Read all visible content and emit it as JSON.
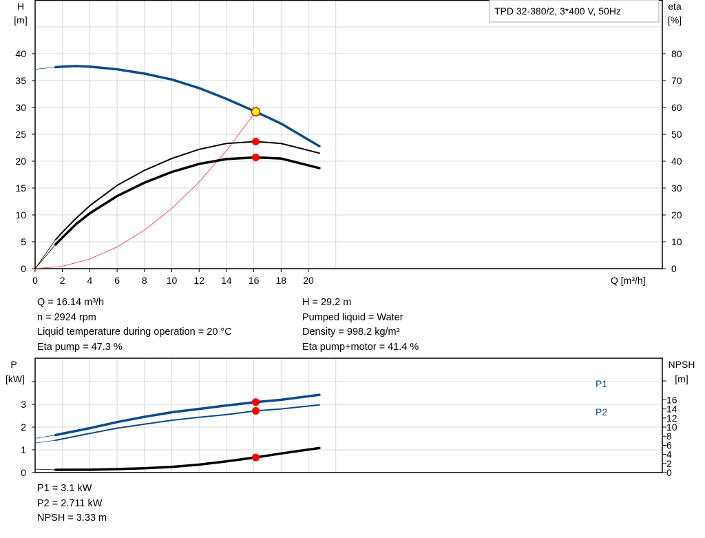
{
  "chart_data": [
    {
      "type": "line",
      "title": "TPD 32-380/2, 3*400 V, 50Hz",
      "xlabel": "Q [m³/h]",
      "ylabel": "H\n[m]",
      "ylabel_lines": [
        "H",
        "[m]"
      ],
      "y2label_lines": [
        "eta",
        "[%]"
      ],
      "xlim": [
        0,
        22
      ],
      "ylim": [
        0,
        40
      ],
      "y2lim": [
        0,
        80
      ],
      "xticks": [
        "0",
        "2",
        "4",
        "6",
        "8",
        "10",
        "12",
        "14",
        "16",
        "18",
        "20"
      ],
      "yticks": [
        "0",
        "5",
        "10",
        "15",
        "20",
        "25",
        "30",
        "35",
        "40"
      ],
      "y2ticks": [
        "0",
        "10",
        "20",
        "30",
        "40",
        "50",
        "60",
        "70",
        "80"
      ],
      "grid": true,
      "series": [
        {
          "key": "H",
          "axis": "left",
          "color": "#0c4a8a",
          "x": [
            1.5,
            2,
            3,
            4,
            6,
            8,
            10,
            12,
            14,
            16.14,
            18,
            20.8
          ],
          "y": [
            37.5,
            37.6,
            37.7,
            37.6,
            37.1,
            36.3,
            35.2,
            33.6,
            31.6,
            29.2,
            27.0,
            22.8
          ],
          "extrapolated": {
            "x": [
              0,
              1.5
            ],
            "y": [
              37.1,
              37.5
            ]
          }
        },
        {
          "key": "eta_pump",
          "axis": "right",
          "color": "#000000",
          "x": [
            1.5,
            2,
            3,
            4,
            6,
            8,
            10,
            12,
            14,
            16.14,
            18,
            20.8
          ],
          "y": [
            10.8,
            13.6,
            18.8,
            23.4,
            31,
            36.6,
            41,
            44.4,
            46.6,
            47.3,
            46.6,
            43
          ],
          "extrapolated": {
            "x": [
              0,
              1.5
            ],
            "y": [
              0,
              10.8
            ]
          }
        },
        {
          "key": "eta_pump_motor",
          "axis": "right",
          "color": "#000000",
          "x": [
            1.5,
            2,
            3,
            4,
            6,
            8,
            10,
            12,
            14,
            16.14,
            18,
            20.8
          ],
          "y": [
            9,
            11.6,
            16.6,
            20.6,
            27,
            32,
            36,
            39,
            40.8,
            41.4,
            41,
            37.4
          ],
          "extrapolated": {
            "x": [
              0,
              1.5
            ],
            "y": [
              0,
              9
            ]
          }
        },
        {
          "key": "system_curve",
          "axis": "left",
          "color": "#ff3030",
          "x": [
            0,
            2,
            4,
            6,
            8,
            10,
            12,
            14,
            16.14
          ],
          "y": [
            0,
            0.45,
            1.79,
            4.04,
            7.17,
            11.21,
            16.14,
            21.97,
            29.2
          ]
        }
      ],
      "duty_point": {
        "Q": 16.14,
        "H": 29.2,
        "eta_pump": 47.3,
        "eta_pump_motor": 41.4
      }
    },
    {
      "type": "line",
      "ylabel_lines": [
        "P",
        "[kW]"
      ],
      "y2label_lines": [
        "NPSH",
        "[m]"
      ],
      "xlim": [
        0,
        22
      ],
      "ylim": [
        0,
        4
      ],
      "y2lim": [
        0,
        16
      ],
      "yticks": [
        "0",
        "1",
        "2",
        "3"
      ],
      "y2ticks": [
        "0",
        "2",
        "4",
        "6",
        "8",
        "10",
        "12",
        "14",
        "16"
      ],
      "grid": true,
      "series": [
        {
          "key": "P1",
          "name": "P1",
          "axis": "left",
          "color": "#0c4a8a",
          "x": [
            1.5,
            4,
            6,
            8,
            10,
            12,
            14,
            16.14,
            18,
            20.8
          ],
          "y": [
            1.65,
            1.95,
            2.22,
            2.45,
            2.65,
            2.8,
            2.95,
            3.1,
            3.2,
            3.42
          ],
          "extrapolated": {
            "x": [
              0,
              1.5
            ],
            "y": [
              1.5,
              1.65
            ]
          }
        },
        {
          "key": "P2",
          "name": "P2",
          "axis": "left",
          "color": "#0c4a8a",
          "x": [
            1.5,
            4,
            6,
            8,
            10,
            12,
            14,
            16.14,
            18,
            20.8
          ],
          "y": [
            1.42,
            1.72,
            1.95,
            2.13,
            2.3,
            2.43,
            2.55,
            2.711,
            2.8,
            2.98
          ],
          "extrapolated": {
            "x": [
              0,
              1.5
            ],
            "y": [
              1.3,
              1.42
            ]
          }
        },
        {
          "key": "NPSH",
          "axis": "right",
          "color": "#000000",
          "x": [
            1.5,
            4,
            6,
            8,
            10,
            12,
            14,
            16.14,
            18,
            20.8
          ],
          "y": [
            0.6,
            0.62,
            0.75,
            0.95,
            1.25,
            1.75,
            2.45,
            3.33,
            4.2,
            5.4
          ],
          "extrapolated": {
            "x": [
              0,
              1.5
            ],
            "y": [
              0.75,
              0.6
            ]
          }
        }
      ],
      "duty_point": {
        "Q": 16.14,
        "P1": 3.1,
        "P2": 2.711,
        "NPSH": 3.33
      }
    }
  ],
  "info_left": [
    "Q = 16.14 m³/h",
    "n = 2924 rpm",
    "Liquid temperature during operation = 20 °C",
    "Eta pump = 47.3 %"
  ],
  "info_right": [
    "H = 29.2 m",
    "Pumped liquid = Water",
    "Density = 998.2 kg/m³",
    "Eta pump+motor = 41.4 %"
  ],
  "info_bottom": [
    "P1 = 3.1 kW",
    "P2 = 2.711 kW",
    "NPSH = 3.33 m"
  ],
  "colors": {
    "blue": "#0c4a8a",
    "marker": "#ff0000",
    "duty_fill": "#ffff00",
    "grid": "#d8d8d8"
  }
}
